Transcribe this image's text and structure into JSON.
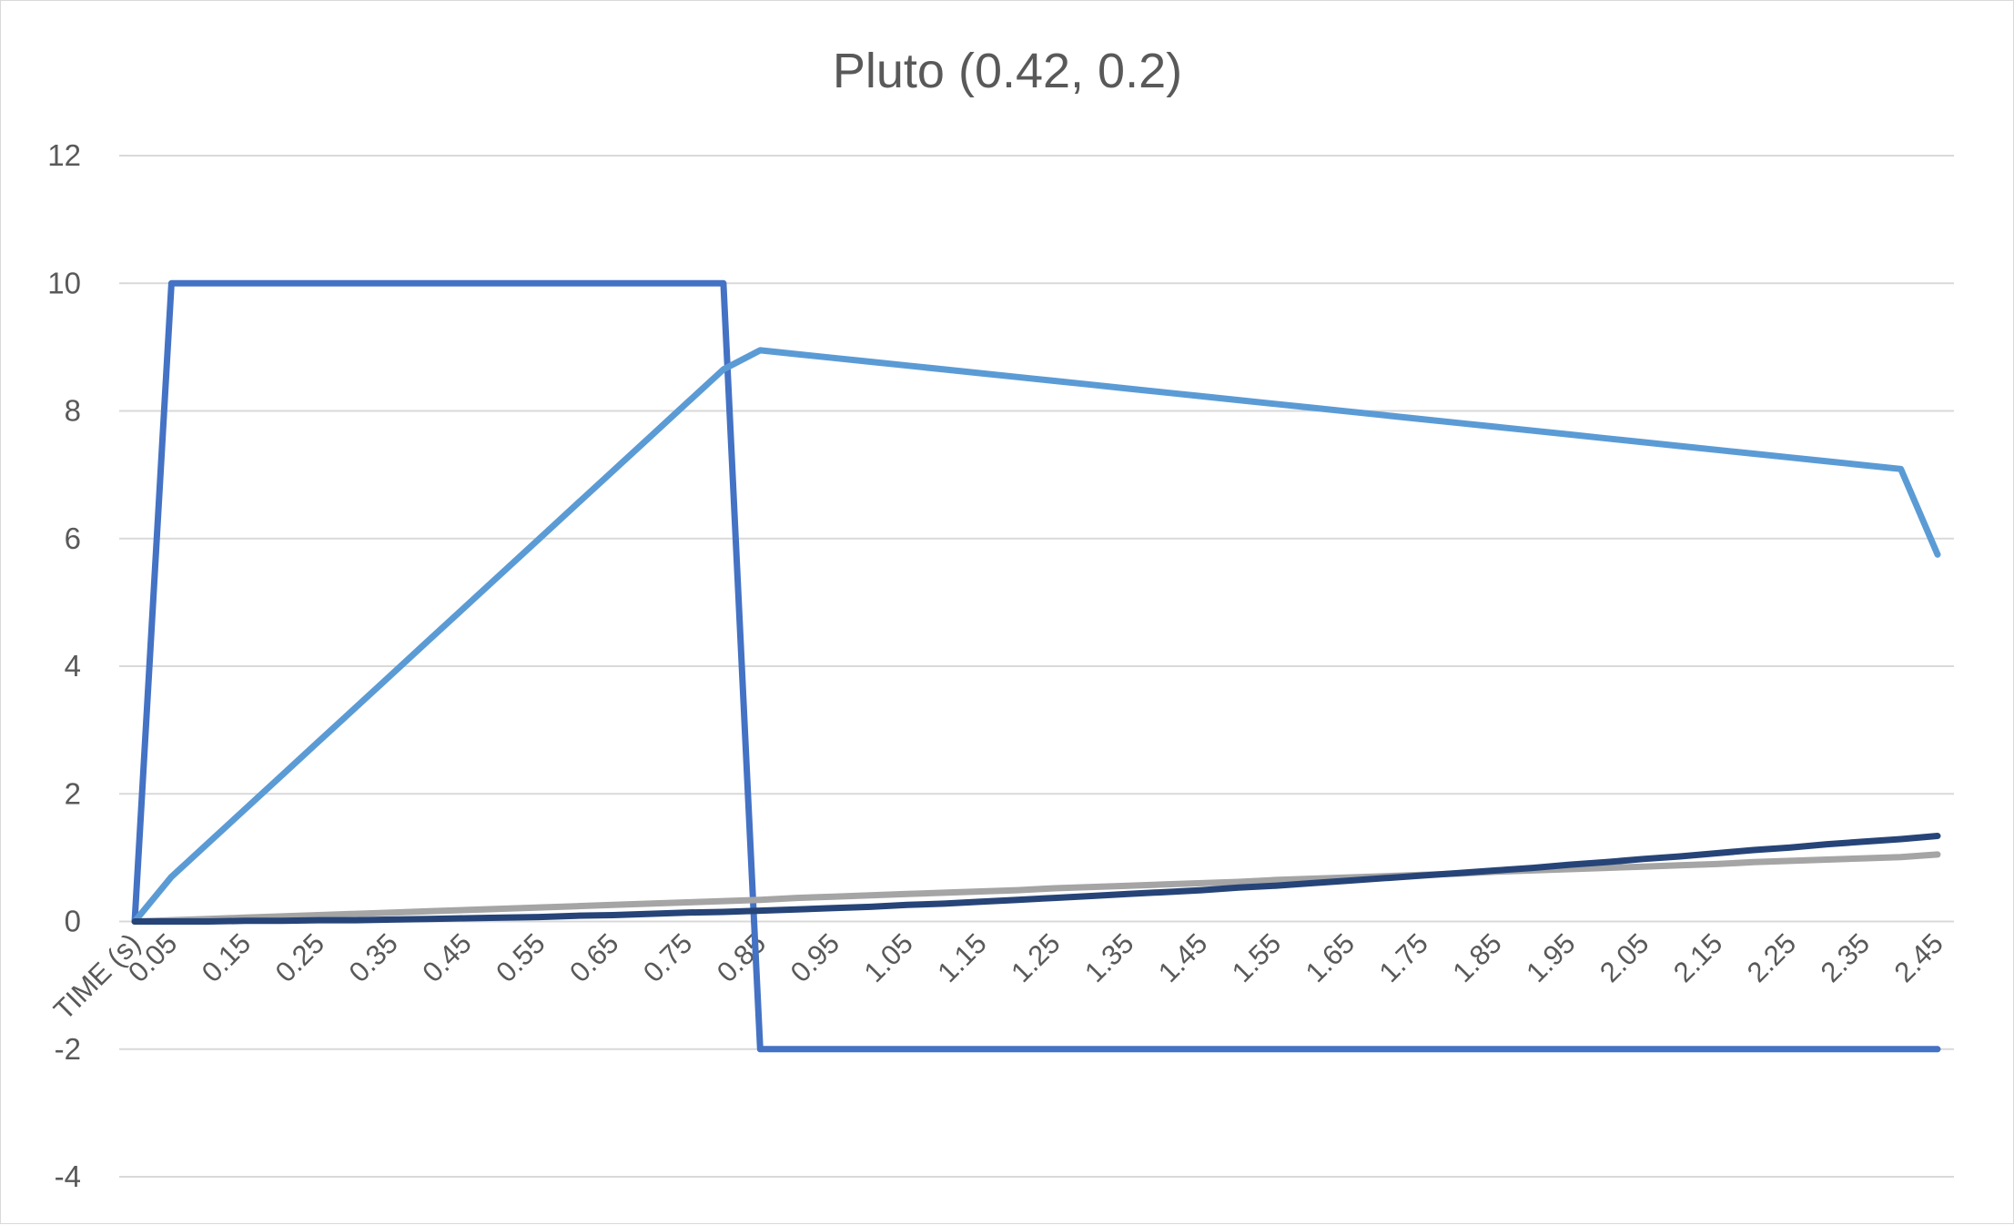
{
  "chart_data": {
    "type": "line",
    "title": "Pluto (0.42, 0.2)",
    "xlabel": "",
    "ylabel": "",
    "ylim": [
      -4,
      12
    ],
    "yticks": [
      -4,
      -2,
      0,
      2,
      4,
      6,
      8,
      10,
      12
    ],
    "grid": true,
    "legend": "none",
    "categories": [
      "TIME (s)",
      "0.05",
      "0.15",
      "0.25",
      "0.35",
      "0.45",
      "0.55",
      "0.65",
      "0.75",
      "0.85",
      "0.95",
      "1.05",
      "1.15",
      "1.25",
      "1.35",
      "1.45",
      "1.55",
      "1.65",
      "1.75",
      "1.85",
      "1.95",
      "2.05",
      "2.15",
      "2.25",
      "2.35",
      "2.45"
    ],
    "x": [
      0,
      0.05,
      0.1,
      0.15,
      0.2,
      0.25,
      0.3,
      0.35,
      0.4,
      0.45,
      0.5,
      0.55,
      0.6,
      0.65,
      0.7,
      0.75,
      0.8,
      0.85,
      0.9,
      0.95,
      1.0,
      1.05,
      1.1,
      1.15,
      1.2,
      1.25,
      1.3,
      1.35,
      1.4,
      1.45,
      1.5,
      1.55,
      1.6,
      1.65,
      1.7,
      1.75,
      1.8,
      1.85,
      1.9,
      1.95,
      2.0,
      2.05,
      2.1,
      2.15,
      2.2,
      2.25,
      2.3,
      2.35,
      2.4,
      2.45
    ],
    "series": [
      {
        "color": "#4472c4",
        "values": [
          0,
          10,
          10,
          10,
          10,
          10,
          10,
          10,
          10,
          10,
          10,
          10,
          10,
          10,
          10,
          10,
          10,
          -2,
          -2,
          -2,
          -2,
          -2,
          -2,
          -2,
          -2,
          -2,
          -2,
          -2,
          -2,
          -2,
          -2,
          -2,
          -2,
          -2,
          -2,
          -2,
          -2,
          -2,
          -2,
          -2,
          -2,
          -2,
          -2,
          -2,
          -2,
          -2,
          -2,
          -2,
          -2,
          -2
        ]
      },
      {
        "color": "#5b9bd5",
        "values": [
          0,
          0.7,
          1.23,
          1.76,
          2.29,
          2.82,
          3.35,
          3.88,
          4.41,
          4.94,
          5.47,
          6.0,
          6.53,
          7.06,
          7.59,
          8.12,
          8.65,
          8.95,
          8.89,
          8.83,
          8.77,
          8.71,
          8.65,
          8.59,
          8.53,
          8.47,
          8.41,
          8.35,
          8.29,
          8.23,
          8.17,
          8.11,
          8.05,
          7.99,
          7.93,
          7.87,
          7.81,
          7.75,
          7.69,
          7.63,
          7.57,
          7.51,
          7.45,
          7.39,
          7.33,
          7.27,
          7.21,
          7.15,
          7.09,
          5.75
        ]
      },
      {
        "color": "#a5a5a5",
        "values": [
          0,
          0.02,
          0.04,
          0.06,
          0.08,
          0.1,
          0.12,
          0.14,
          0.16,
          0.18,
          0.2,
          0.22,
          0.24,
          0.26,
          0.28,
          0.3,
          0.32,
          0.34,
          0.37,
          0.39,
          0.41,
          0.43,
          0.45,
          0.47,
          0.49,
          0.52,
          0.54,
          0.56,
          0.58,
          0.6,
          0.62,
          0.65,
          0.67,
          0.69,
          0.71,
          0.73,
          0.75,
          0.78,
          0.8,
          0.82,
          0.84,
          0.86,
          0.88,
          0.9,
          0.93,
          0.95,
          0.97,
          0.99,
          1.01,
          1.05
        ]
      },
      {
        "color": "#264478",
        "values": [
          0,
          0,
          0,
          0.01,
          0.01,
          0.02,
          0.02,
          0.03,
          0.04,
          0.05,
          0.06,
          0.07,
          0.09,
          0.1,
          0.12,
          0.14,
          0.15,
          0.17,
          0.19,
          0.21,
          0.23,
          0.26,
          0.28,
          0.31,
          0.34,
          0.37,
          0.4,
          0.43,
          0.46,
          0.49,
          0.53,
          0.56,
          0.6,
          0.64,
          0.68,
          0.72,
          0.76,
          0.8,
          0.84,
          0.89,
          0.93,
          0.98,
          1.02,
          1.07,
          1.12,
          1.16,
          1.21,
          1.25,
          1.29,
          1.34
        ]
      }
    ]
  }
}
